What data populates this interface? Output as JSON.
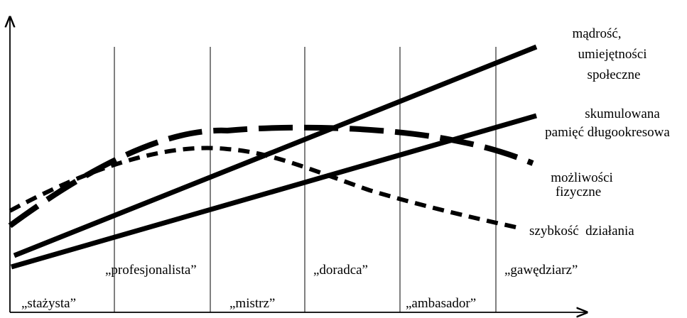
{
  "stages": [
    {
      "label": "„stażysta”",
      "row": "bottom"
    },
    {
      "label": "„profesjonalista”",
      "row": "upper"
    },
    {
      "label": "„mistrz”",
      "row": "bottom"
    },
    {
      "label": "„doradca”",
      "row": "upper"
    },
    {
      "label": "„ambasador”",
      "row": "bottom"
    },
    {
      "label": "„gawędziarz”",
      "row": "upper"
    }
  ],
  "curves": [
    {
      "name": "wisdom",
      "style": "solid",
      "label_lines": [
        "mądrość,",
        "umiejętności",
        "społeczne"
      ]
    },
    {
      "name": "memory",
      "style": "solid",
      "label_lines": [
        "skumulowana",
        "pamięć długookresowa"
      ]
    },
    {
      "name": "physical",
      "style": "dashed-long",
      "label_lines": [
        "możliwości",
        "fizyczne"
      ]
    },
    {
      "name": "speed",
      "style": "dashed-short",
      "label_lines": [
        "szybkość  działania"
      ]
    }
  ],
  "colors": {
    "ink": "#000000",
    "background": "#ffffff"
  }
}
